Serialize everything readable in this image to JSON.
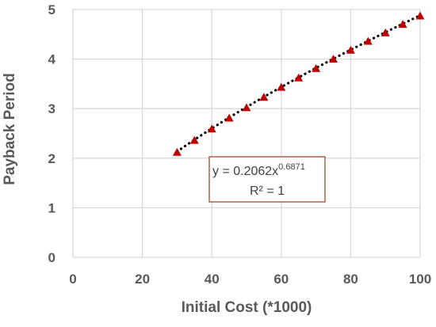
{
  "chart_data": {
    "type": "scatter",
    "xlabel": "Initial Cost (*1000)",
    "ylabel": "Payback Period",
    "xlim": [
      0,
      100
    ],
    "ylim": [
      0,
      5
    ],
    "x_ticks": [
      "0",
      "20",
      "40",
      "60",
      "80",
      "100"
    ],
    "y_ticks": [
      "0",
      "1",
      "2",
      "3",
      "4",
      "5"
    ],
    "grid": true,
    "x": [
      30,
      35,
      40,
      45,
      50,
      55,
      60,
      65,
      70,
      75,
      80,
      85,
      90,
      95,
      100
    ],
    "y": [
      2.12,
      2.36,
      2.59,
      2.81,
      3.02,
      3.23,
      3.43,
      3.62,
      3.81,
      4.0,
      4.18,
      4.36,
      4.53,
      4.7,
      4.87
    ],
    "marker_color": "#c00000",
    "trendline": {
      "type": "power",
      "coefficient": 0.2062,
      "exponent": 0.6871,
      "color": "#000000"
    },
    "annotation": {
      "equation_prefix": "y = 0.2062x",
      "equation_exponent": "0.6871",
      "r_squared": "R² = 1",
      "border_color": "#9e3a1a"
    }
  }
}
